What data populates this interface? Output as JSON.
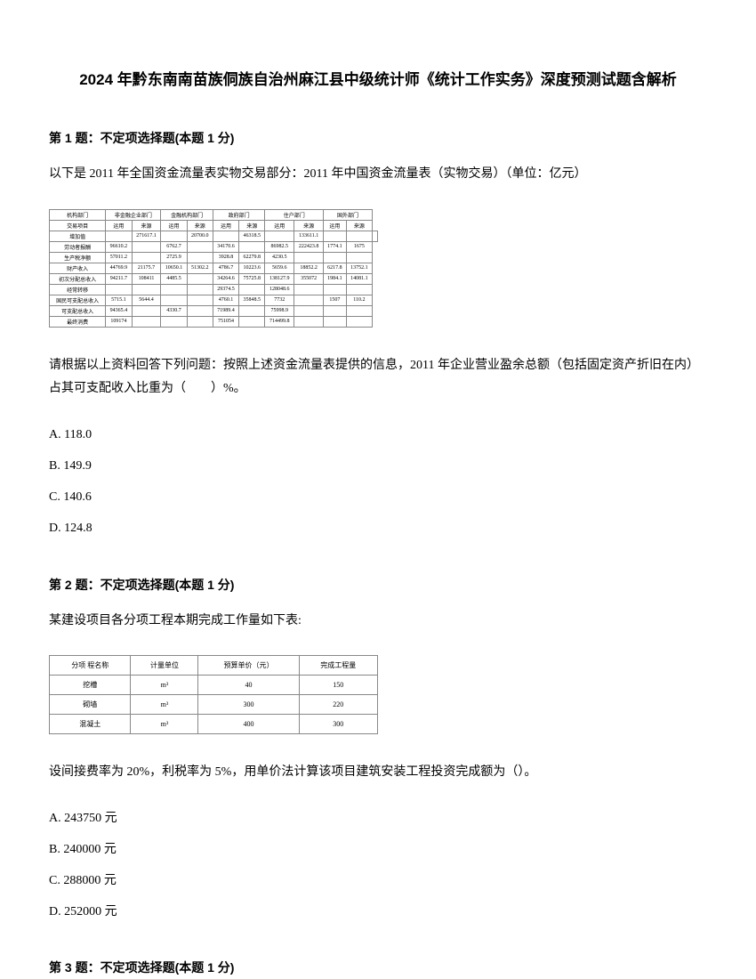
{
  "title": "2024 年黔东南南苗族侗族自治州麻江县中级统计师《统计工作实务》深度预测试题含解析",
  "q1": {
    "header": "第 1 题：不定项选择题(本题 1 分)",
    "intro": "以下是 2011 年全国资金流量表实物交易部分：2011 年中国资金流量表（实物交易）（单位：亿元）",
    "prompt": "请根据以上资料回答下列问题：按照上述资金流量表提供的信息，2011 年企业营业盈余总额（包括固定资产折旧在内）占其可支配收入比重为（　　）%。",
    "options": {
      "a": "A. 118.0",
      "b": "B. 149.9",
      "c": "C. 140.6",
      "d": "D. 124.8"
    },
    "table": {
      "header_row1": [
        "机构部门",
        "非金融企业部门",
        "金融机构部门",
        "政府部门",
        "住户部门",
        "国外部门"
      ],
      "header_row2": [
        "交易项目",
        "运用",
        "来源",
        "运用",
        "来源",
        "运用",
        "来源",
        "运用",
        "来源",
        "运用",
        "来源"
      ],
      "rows": [
        [
          "增加值",
          "",
          "271617.1",
          "",
          "20700.0",
          "",
          "46318.5",
          "",
          "133611.1",
          "",
          "",
          ""
        ],
        [
          "劳动者报酬",
          "96610.2",
          "",
          "6762.7",
          "",
          "34170.6",
          "",
          "86982.5",
          "222423.8",
          "1774.1",
          "1675"
        ],
        [
          "生产税净额",
          "57011.2",
          "",
          "2725.9",
          "",
          "3928.8",
          "62279.8",
          "4230.5",
          "",
          "",
          ""
        ],
        [
          "财产收入",
          "44769.9",
          "21175.7",
          "10650.1",
          "51302.2",
          "4786.7",
          "10223.6",
          "5659.6",
          "18852.2",
          "6217.8",
          "13752.1"
        ],
        [
          "初次分配总收入",
          "94211.7",
          "108411",
          "4485.5",
          "",
          "34264.6",
          "75725.8",
          "138127.9",
          "355072",
          "1984.1",
          "14081.1"
        ],
        [
          "经常转移",
          "",
          "",
          "",
          "",
          "29374.5",
          "",
          "128048.6",
          "",
          "",
          ""
        ],
        [
          "国民可支配总收入",
          "5715.1",
          "5644.4",
          "",
          "",
          "4760.1",
          "35848.5",
          "7732",
          "",
          "1507",
          "110.2"
        ],
        [
          "可支配总收入",
          "94365.4",
          "",
          "4330.7",
          "",
          "71989.4",
          "",
          "75998.9",
          "",
          "",
          ""
        ],
        [
          "最终消费",
          "109174",
          "",
          "",
          "",
          "751054",
          "",
          "714499.8",
          "",
          "",
          ""
        ]
      ]
    }
  },
  "q2": {
    "header": "第 2 题：不定项选择题(本题 1 分)",
    "intro": "某建设项目各分项工程本期完成工作量如下表:",
    "prompt": "设间接费率为 20%，利税率为 5%，用单价法计算该项目建筑安装工程投资完成额为（）。",
    "options": {
      "a": "A. 243750 元",
      "b": "B. 240000 元",
      "c": "C. 288000 元",
      "d": "D. 252000 元"
    },
    "table": {
      "headers": [
        "分项 程名称",
        "计量单位",
        "预算单价（元）",
        "完成工程量"
      ],
      "rows": [
        [
          "挖槽",
          "m³",
          "40",
          "150"
        ],
        [
          "砌墙",
          "m³",
          "300",
          "220"
        ],
        [
          "混凝土",
          "m³",
          "400",
          "300"
        ]
      ]
    }
  },
  "q3": {
    "header": "第 3 题：不定项选择题(本题 1 分)"
  }
}
